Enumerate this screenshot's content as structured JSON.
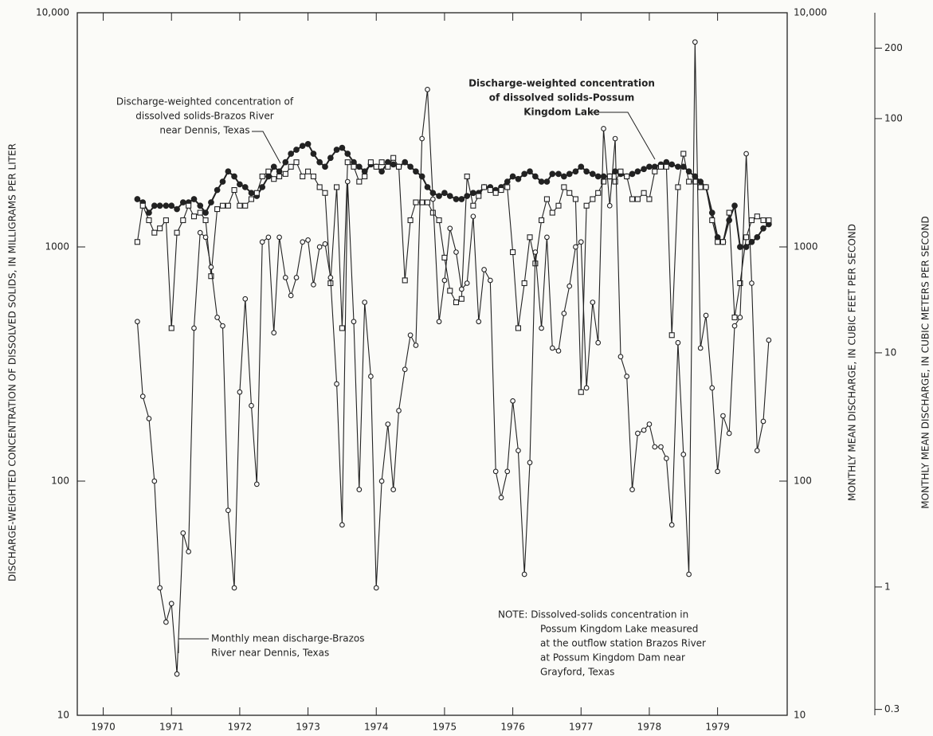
{
  "chart_data": {
    "type": "line",
    "log_scale": true,
    "y_label": "DISCHARGE-WEIGHTED CONCENTRATION OF DISSOLVED SOLIDS, IN MILLIGRAMS PER LITER",
    "y2_label": "MONTHLY MEAN DISCHARGE, IN CUBIC FEET PER SECOND",
    "y3_label": "MONTHLY MEAN DISCHARGE, IN CUBIC METERS PER SECOND",
    "xlim": [
      1969.62,
      1980.02
    ],
    "xticks": [
      1970,
      1971,
      1972,
      1973,
      1974,
      1975,
      1976,
      1977,
      1978,
      1979
    ],
    "ylim": [
      10,
      10000
    ],
    "yticks": [
      {
        "value": 10000,
        "label": "10,000"
      },
      1000,
      100,
      10
    ],
    "y2lim": [
      10,
      10000
    ],
    "y2ticks": [
      {
        "value": 10000,
        "label": "10,000"
      },
      1000,
      100,
      10
    ],
    "y3lim": [
      0.2832,
      283.2
    ],
    "y3ticks": [
      200,
      100,
      10,
      1,
      0.3
    ],
    "x": [
      1970.5,
      1970.58,
      1970.67,
      1970.75,
      1970.83,
      1970.92,
      1971,
      1971.08,
      1971.17,
      1971.25,
      1971.33,
      1971.42,
      1971.5,
      1971.58,
      1971.67,
      1971.75,
      1971.83,
      1971.92,
      1972,
      1972.08,
      1972.17,
      1972.25,
      1972.33,
      1972.42,
      1972.5,
      1972.58,
      1972.67,
      1972.75,
      1972.83,
      1972.92,
      1973,
      1973.08,
      1973.17,
      1973.25,
      1973.33,
      1973.42,
      1973.5,
      1973.58,
      1973.67,
      1973.75,
      1973.83,
      1973.92,
      1974,
      1974.08,
      1974.17,
      1974.25,
      1974.33,
      1974.42,
      1974.5,
      1974.58,
      1974.67,
      1974.75,
      1974.83,
      1974.92,
      1975,
      1975.08,
      1975.17,
      1975.25,
      1975.33,
      1975.42,
      1975.5,
      1975.58,
      1975.67,
      1975.75,
      1975.83,
      1975.92,
      1976,
      1976.08,
      1976.17,
      1976.25,
      1976.33,
      1976.42,
      1976.5,
      1976.58,
      1976.67,
      1976.75,
      1976.83,
      1976.92,
      1977,
      1977.08,
      1977.17,
      1977.25,
      1977.33,
      1977.42,
      1977.5,
      1977.58,
      1977.67,
      1977.75,
      1977.83,
      1977.92,
      1978,
      1978.08,
      1978.17,
      1978.25,
      1978.33,
      1978.42,
      1978.5,
      1978.58,
      1978.67,
      1978.75,
      1978.83,
      1978.92,
      1979,
      1979.08,
      1979.17,
      1979.25,
      1979.33,
      1979.42,
      1979.5,
      1979.58,
      1979.67,
      1979.75
    ],
    "series": [
      {
        "name": "Discharge-weighted concentration of dissolved solids-Brazos River near Dennis, Texas",
        "color": "#222",
        "marker": "filled-circle",
        "values": [
          1600,
          1550,
          1400,
          1500,
          1500,
          1500,
          1500,
          1450,
          1550,
          1550,
          1600,
          1500,
          1400,
          1550,
          1750,
          1900,
          2100,
          2000,
          1850,
          1800,
          1700,
          1650,
          1800,
          2000,
          2200,
          2100,
          2300,
          2500,
          2600,
          2700,
          2750,
          2500,
          2300,
          2200,
          2400,
          2600,
          2650,
          2500,
          2300,
          2200,
          2100,
          2250,
          2200,
          2100,
          2300,
          2250,
          2200,
          2300,
          2200,
          2100,
          2000,
          1800,
          1700,
          1650,
          1700,
          1650,
          1600,
          1600,
          1650,
          1700,
          1700,
          1800,
          1800,
          1750,
          1800,
          1900,
          2000,
          1950,
          2050,
          2100,
          2000,
          1900,
          1900,
          2050,
          2050,
          2000,
          2050,
          2100,
          2200,
          2100,
          2050,
          2000,
          2000,
          2000,
          2100,
          2050,
          2000,
          2050,
          2100,
          2150,
          2200,
          2200,
          2250,
          2300,
          2250,
          2200,
          2200,
          2100,
          2000,
          1900,
          1800,
          1400,
          1100,
          1050,
          1300,
          1500,
          1000,
          1000,
          1050,
          1100,
          1200,
          1250
        ]
      },
      {
        "name": "Discharge-weighted concentration of dissolved solids-Possum Kingdom Lake",
        "color": "#222",
        "marker": "square",
        "values": [
          1050,
          1500,
          1300,
          1150,
          1200,
          1300,
          450,
          1150,
          1300,
          1500,
          1350,
          1400,
          1300,
          750,
          1450,
          1500,
          1500,
          1750,
          1500,
          1500,
          1600,
          1700,
          2000,
          2100,
          1950,
          2000,
          2050,
          2200,
          2300,
          2000,
          2100,
          2000,
          1800,
          1700,
          700,
          1800,
          450,
          2300,
          2200,
          1900,
          2000,
          2300,
          2200,
          2300,
          2200,
          2400,
          2200,
          720,
          1300,
          1550,
          1550,
          1550,
          1400,
          1300,
          900,
          650,
          580,
          600,
          2000,
          1500,
          1650,
          1800,
          1750,
          1700,
          1750,
          1800,
          950,
          450,
          700,
          1100,
          850,
          1300,
          1600,
          1400,
          1500,
          1800,
          1700,
          1600,
          240,
          1500,
          1600,
          1700,
          1900,
          2000,
          1900,
          2100,
          2000,
          1600,
          1600,
          1700,
          1600,
          2100,
          2200,
          2200,
          420,
          1800,
          2500,
          1900,
          1900,
          1800,
          1800,
          1300,
          1050,
          1050,
          1400,
          500,
          700,
          1100,
          1300,
          1350,
          1300,
          1300
        ]
      },
      {
        "name": "Monthly mean discharge-Brazos River near Dennis, Texas",
        "color": "#222",
        "marker": "open-circle",
        "axis": "y2",
        "values": [
          480,
          230,
          185,
          100,
          35,
          25,
          30,
          15,
          60,
          50,
          450,
          1150,
          1100,
          820,
          500,
          460,
          75,
          35,
          240,
          600,
          210,
          97,
          1050,
          1100,
          430,
          1100,
          740,
          620,
          740,
          1050,
          1070,
          690,
          1000,
          1030,
          740,
          260,
          65,
          1900,
          480,
          92,
          580,
          280,
          35,
          100,
          175,
          92,
          200,
          300,
          420,
          380,
          2900,
          4700,
          1600,
          480,
          720,
          1200,
          950,
          660,
          700,
          1350,
          480,
          800,
          720,
          110,
          85,
          110,
          220,
          135,
          40,
          120,
          950,
          450,
          1100,
          370,
          360,
          520,
          680,
          1000,
          1050,
          250,
          580,
          390,
          3200,
          1500,
          2900,
          340,
          280,
          92,
          160,
          165,
          175,
          140,
          140,
          125,
          65,
          390,
          130,
          40,
          7500,
          370,
          510,
          250,
          110,
          190,
          160,
          460,
          500,
          2500,
          700,
          135,
          180,
          400
        ]
      }
    ],
    "annotations": [
      {
        "lines": [
          "Discharge-weighted concentration of",
          "dissolved solids-Brazos River",
          "near Dennis, Texas"
        ]
      },
      {
        "lines": [
          "Discharge-weighted concentration",
          "of dissolved solids-Possum",
          "Kingdom Lake"
        ]
      },
      {
        "lines": [
          "Monthly mean discharge-Brazos",
          "River near Dennis, Texas"
        ]
      },
      {
        "lines": [
          "NOTE: Dissolved-solids concentration in",
          "Possum Kingdom Lake measured",
          "at the outflow station Brazos River",
          "at Possum Kingdom Dam near",
          "Grayford, Texas"
        ]
      }
    ]
  }
}
